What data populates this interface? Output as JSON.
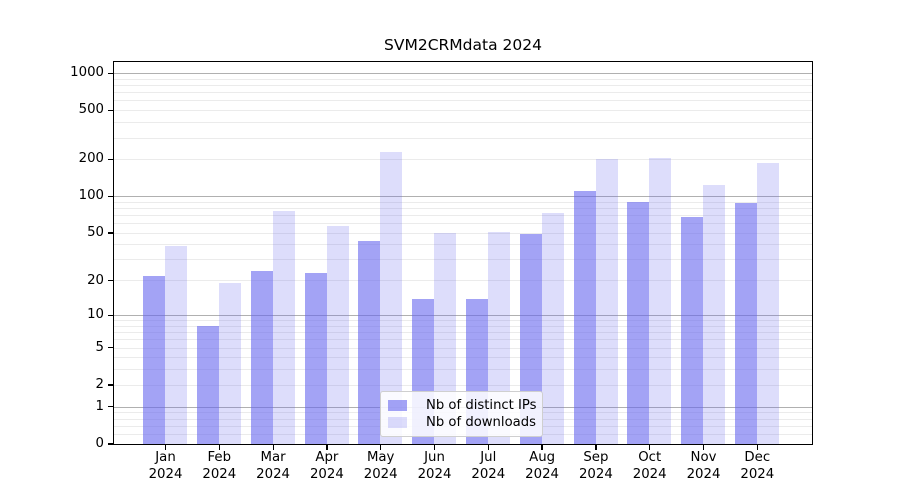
{
  "title": "SVM2CRMdata 2024",
  "chart_data": {
    "type": "bar",
    "title": "SVM2CRMdata 2024",
    "categories": [
      "Jan 2024",
      "Feb 2024",
      "Mar 2024",
      "Apr 2024",
      "May 2024",
      "Jun 2024",
      "Jul 2024",
      "Aug 2024",
      "Sep 2024",
      "Oct 2024",
      "Nov 2024",
      "Dec 2024"
    ],
    "x_tick_line1": [
      "Jan",
      "Feb",
      "Mar",
      "Apr",
      "May",
      "Jun",
      "Jul",
      "Aug",
      "Sep",
      "Oct",
      "Nov",
      "Dec"
    ],
    "x_tick_line2": "2024",
    "series": [
      {
        "name": "Nb of distinct IPs",
        "base_color": "#6666ee",
        "alpha": 0.6,
        "values": [
          22,
          8,
          24,
          23,
          43,
          14,
          14,
          49,
          110,
          90,
          67,
          88
        ]
      },
      {
        "name": "Nb of downloads",
        "base_color": "#6666ee",
        "alpha": 0.22,
        "values": [
          39,
          19,
          76,
          57,
          230,
          50,
          51,
          73,
          200,
          203,
          123,
          187
        ]
      }
    ],
    "yscale": "symlog",
    "y_ticks": [
      0,
      1,
      2,
      5,
      10,
      20,
      50,
      100,
      200,
      500,
      1000
    ],
    "ylim": [
      0,
      1240
    ],
    "xlabel": "",
    "ylabel": "",
    "grid": true,
    "legend_position": "lower center"
  },
  "colors": {
    "bar_base": "#6666ee",
    "major_grid": "#b0b0b0",
    "minor_grid": "#ebebeb",
    "axis": "#000000",
    "background": "#ffffff",
    "legend_border": "#cfcfcf"
  }
}
